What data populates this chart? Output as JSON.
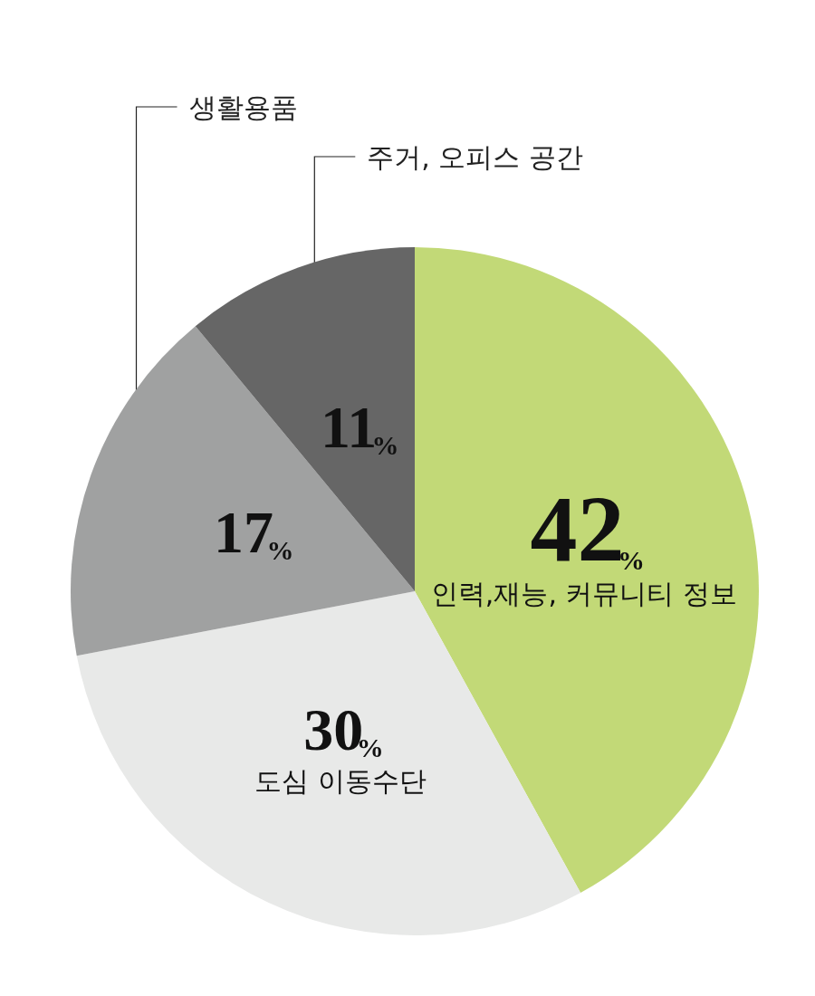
{
  "chart_data": {
    "type": "pie",
    "categories": [
      "인력,재능, 커뮤니티 정보",
      "도심 이동수단",
      "생활용품",
      "주거, 오피스 공간"
    ],
    "values": [
      42,
      30,
      17,
      11
    ],
    "colors": [
      "#c2d977",
      "#e8e9e8",
      "#a0a1a1",
      "#666666"
    ],
    "value_labels": [
      "42%",
      "30%",
      "17%",
      "11%"
    ],
    "legend": false
  }
}
